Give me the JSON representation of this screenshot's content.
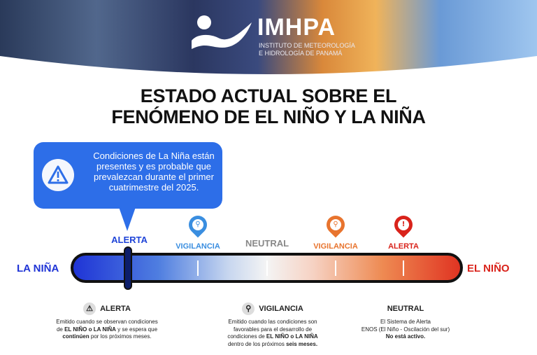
{
  "header": {
    "logo_name": "IMHPA",
    "logo_subtitle_1": "INSTITUTO DE METEOROLOGÍA",
    "logo_subtitle_2": "E HIDROLOGÍA DE PANAMÁ"
  },
  "title": {
    "line1": "ESTADO ACTUAL SOBRE EL",
    "line2": "FENÓMENO DE EL NIÑO Y LA NIÑA"
  },
  "callout": {
    "icon": "warning-icon",
    "text": "Condiciones de La Niña están presentes y es probable que prevalezcan durante el primer cuatrimestre del 2025."
  },
  "scale": {
    "left_label": "LA NIÑA",
    "right_label": "EL NIÑO",
    "current_level": "ALERTA",
    "current_side": "LA NIÑA",
    "markers": [
      {
        "label": "ALERTA",
        "color": "#1f44d8"
      },
      {
        "label": "VIGILANCIA",
        "color": "#3a8ee0",
        "icon": "magnifier-icon"
      },
      {
        "label": "NEUTRAL",
        "color": "#888888"
      },
      {
        "label": "VIGILANCIA",
        "color": "#e8742e",
        "icon": "magnifier-icon"
      },
      {
        "label": "ALERTA",
        "color": "#d9231b",
        "icon": "warning-icon"
      }
    ]
  },
  "legend": [
    {
      "title": "ALERTA",
      "icon": "warning-icon",
      "l1": "Emitido cuando se observan condiciones",
      "l2a": "de ",
      "l2b": "EL NIÑO o LA NIÑA",
      "l2c": " y se espera que",
      "l3a": "continúen",
      "l3b": " por los próximos meses."
    },
    {
      "title": "VIGILANCIA",
      "icon": "magnifier-icon",
      "l1": "Emitido cuando las condiciones son",
      "l2": "favorables para el desarrollo de",
      "l3a": "condiciones de ",
      "l3b": "EL NIÑO o LA NIÑA",
      "l4a": "dentro de los próximos ",
      "l4b": "seis meses."
    },
    {
      "title": "NEUTRAL",
      "l1": "El Sistema de Alerta",
      "l2": "ENOS (El Niño - Oscilación del sur)",
      "l3": "No está activo."
    }
  ]
}
